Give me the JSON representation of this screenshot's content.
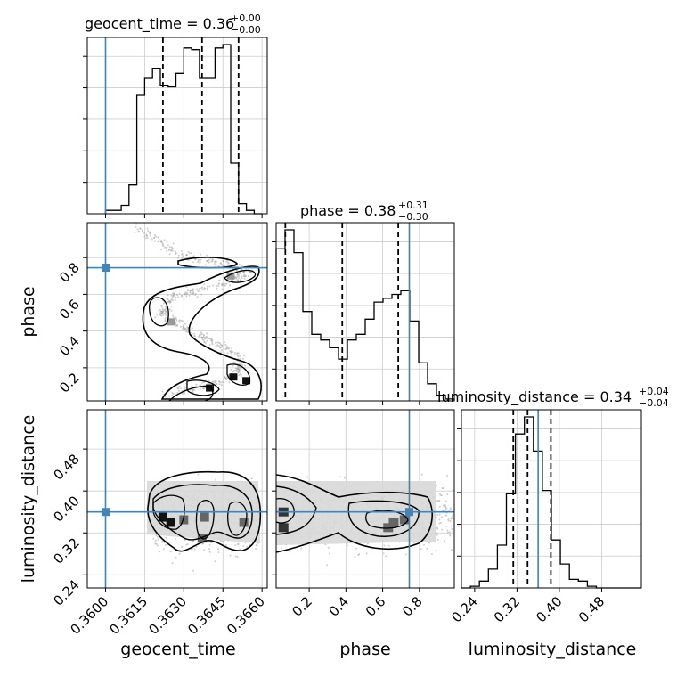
{
  "chart_data": {
    "type": "scatter",
    "plot_kind": "corner plot",
    "parameters": [
      "geocent_time",
      "phase",
      "luminosity_distance"
    ],
    "axis_labels": {
      "geocent_time": "geocent_time",
      "phase": "phase",
      "luminosity_distance": "luminosity_distance"
    },
    "titles": {
      "geocent_time": {
        "prefix": "geocent_time = 0.36",
        "plus": "+0.00",
        "minus": "−0.00"
      },
      "phase": {
        "prefix": "phase = 0.38",
        "plus": "+0.31",
        "minus": "−0.30"
      },
      "luminosity_distance": {
        "prefix": "luminosity_distance = 0.34",
        "plus": "+0.04",
        "minus": "−0.04"
      }
    },
    "ranges": {
      "geocent_time": [
        0.3593,
        0.3662
      ],
      "phase": [
        0.02,
        0.99
      ],
      "luminosity_distance": [
        0.215,
        0.555
      ]
    },
    "ticks": {
      "geocent_time": {
        "values": [
          0.36,
          0.3615,
          0.363,
          0.3645,
          0.366
        ],
        "labels": [
          "0.3600",
          "0.3615",
          "0.3630",
          "0.3645",
          "0.3660"
        ]
      },
      "phase": {
        "values": [
          0.2,
          0.4,
          0.6,
          0.8
        ],
        "labels": [
          "0.2",
          "0.4",
          "0.6",
          "0.8"
        ]
      },
      "luminosity_distance": {
        "values": [
          0.24,
          0.32,
          0.4,
          0.48
        ],
        "labels": [
          "0.24",
          "0.32",
          "0.40",
          "0.48"
        ]
      }
    },
    "truths": {
      "geocent_time": 0.36,
      "phase": 0.745,
      "luminosity_distance": 0.36
    },
    "quantiles": {
      "geocent_time": [
        0.3622,
        0.3637,
        0.3651
      ],
      "phase": [
        0.07,
        0.38,
        0.685
      ],
      "luminosity_distance": [
        0.313,
        0.34,
        0.384
      ]
    },
    "histograms": {
      "geocent_time": {
        "edges": [
          0.36,
          0.3603,
          0.3606,
          0.3609,
          0.3612,
          0.3615,
          0.3618,
          0.3621,
          0.3624,
          0.3627,
          0.363,
          0.3633,
          0.3636,
          0.3639,
          0.3642,
          0.3645,
          0.3648,
          0.3651,
          0.3654,
          0.3657,
          0.366
        ],
        "counts": [
          0.02,
          0.02,
          0.05,
          0.17,
          0.7,
          0.8,
          0.86,
          0.76,
          0.75,
          0.83,
          0.98,
          0.97,
          0.8,
          0.8,
          0.98,
          1.0,
          0.3,
          0.06,
          0.02,
          0.0
        ]
      },
      "phase": {
        "edges": [
          0.02,
          0.0685,
          0.117,
          0.1655,
          0.214,
          0.2625,
          0.311,
          0.3595,
          0.408,
          0.4565,
          0.505,
          0.5535,
          0.602,
          0.6505,
          0.699,
          0.7475,
          0.796,
          0.8445,
          0.893,
          0.9415,
          0.99
        ],
        "counts": [
          0.8,
          0.9,
          0.78,
          0.47,
          0.35,
          0.32,
          0.28,
          0.22,
          0.32,
          0.35,
          0.43,
          0.52,
          0.54,
          0.56,
          0.58,
          0.42,
          0.2,
          0.09,
          0.03,
          0.01
        ]
      },
      "luminosity_distance": {
        "edges": [
          0.215,
          0.232,
          0.249,
          0.266,
          0.283,
          0.3,
          0.317,
          0.334,
          0.351,
          0.368,
          0.385,
          0.402,
          0.419,
          0.436,
          0.453,
          0.47,
          0.487,
          0.504,
          0.521,
          0.538,
          0.555
        ],
        "counts": [
          0.0,
          0.01,
          0.04,
          0.11,
          0.25,
          0.55,
          0.9,
          1.0,
          0.8,
          0.57,
          0.28,
          0.14,
          0.05,
          0.04,
          0.01,
          0.0,
          0.0,
          0.0,
          0.0,
          0.0
        ]
      }
    },
    "density_2d": {
      "phase_vs_geocent_time": {
        "description_points": [
          [
            0.3612,
            0.97
          ],
          [
            0.3622,
            0.87
          ],
          [
            0.3632,
            0.8
          ],
          [
            0.3645,
            0.77
          ],
          [
            0.3655,
            0.73
          ],
          [
            0.3648,
            0.67
          ],
          [
            0.3635,
            0.62
          ],
          [
            0.3624,
            0.57
          ],
          [
            0.3622,
            0.49
          ],
          [
            0.3632,
            0.4
          ],
          [
            0.3643,
            0.33
          ],
          [
            0.3652,
            0.25
          ],
          [
            0.365,
            0.16
          ],
          [
            0.3638,
            0.1
          ],
          [
            0.3622,
            0.06
          ]
        ],
        "dense_cells": [
          [
            0.3649,
            0.15
          ],
          [
            0.3654,
            0.13
          ],
          [
            0.364,
            0.09
          ],
          [
            0.3625,
            0.45
          ],
          [
            0.3648,
            0.7
          ]
        ]
      },
      "luminosity_distance_vs_geocent_time": {
        "center_line": 0.35,
        "dense_cells": [
          [
            0.3622,
            0.35
          ],
          [
            0.3625,
            0.34
          ],
          [
            0.3638,
            0.35
          ],
          [
            0.3653,
            0.34
          ],
          [
            0.3637,
            0.31
          ],
          [
            0.363,
            0.345
          ]
        ]
      },
      "luminosity_distance_vs_phase": {
        "center_line": 0.35,
        "dense_cells": [
          [
            0.06,
            0.36
          ],
          [
            0.06,
            0.33
          ],
          [
            0.66,
            0.34
          ],
          [
            0.72,
            0.345
          ],
          [
            0.63,
            0.33
          ]
        ]
      }
    },
    "grid": true,
    "colors": {
      "truth": "#4682b4",
      "contour": "#000000",
      "points": "#9e9e9e",
      "grid": "#cccccc"
    }
  }
}
